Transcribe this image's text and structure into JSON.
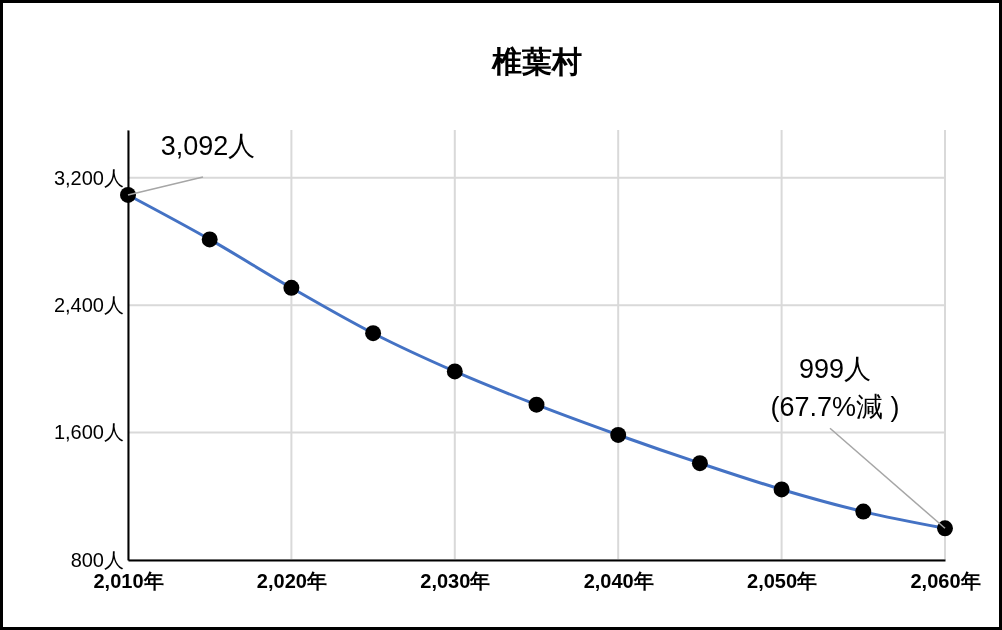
{
  "chart_data": {
    "type": "line",
    "title": "椎葉村",
    "x": [
      2010,
      2015,
      2020,
      2025,
      2030,
      2035,
      2040,
      2045,
      2050,
      2055,
      2060
    ],
    "series": [
      {
        "color": "#4472c4",
        "values": [
          3092,
          2813,
          2509,
          2224,
          1984,
          1775,
          1585,
          1408,
          1243,
          1104,
          999
        ]
      }
    ],
    "xlim": [
      2010,
      2060
    ],
    "xticks": [
      {
        "value": 2010,
        "label": "2,010年"
      },
      {
        "value": 2020,
        "label": "2,020年"
      },
      {
        "value": 2030,
        "label": "2,030年"
      },
      {
        "value": 2040,
        "label": "2,040年"
      },
      {
        "value": 2050,
        "label": "2,050年"
      },
      {
        "value": 2060,
        "label": "2,060年"
      }
    ],
    "ylim": [
      800,
      3500
    ],
    "yticks": [
      {
        "value": 800,
        "label": "800人"
      },
      {
        "value": 1600,
        "label": "1,600人"
      },
      {
        "value": 2400,
        "label": "2,400人"
      },
      {
        "value": 3200,
        "label": "3,200人"
      }
    ],
    "grid": true,
    "marker": "circle",
    "line_style": "solid",
    "annotations": [
      {
        "text": "3,092人",
        "x": 2010,
        "y": 3092
      },
      {
        "text": "999人\n(67.7%減 )",
        "x": 2060,
        "y": 999
      }
    ]
  }
}
